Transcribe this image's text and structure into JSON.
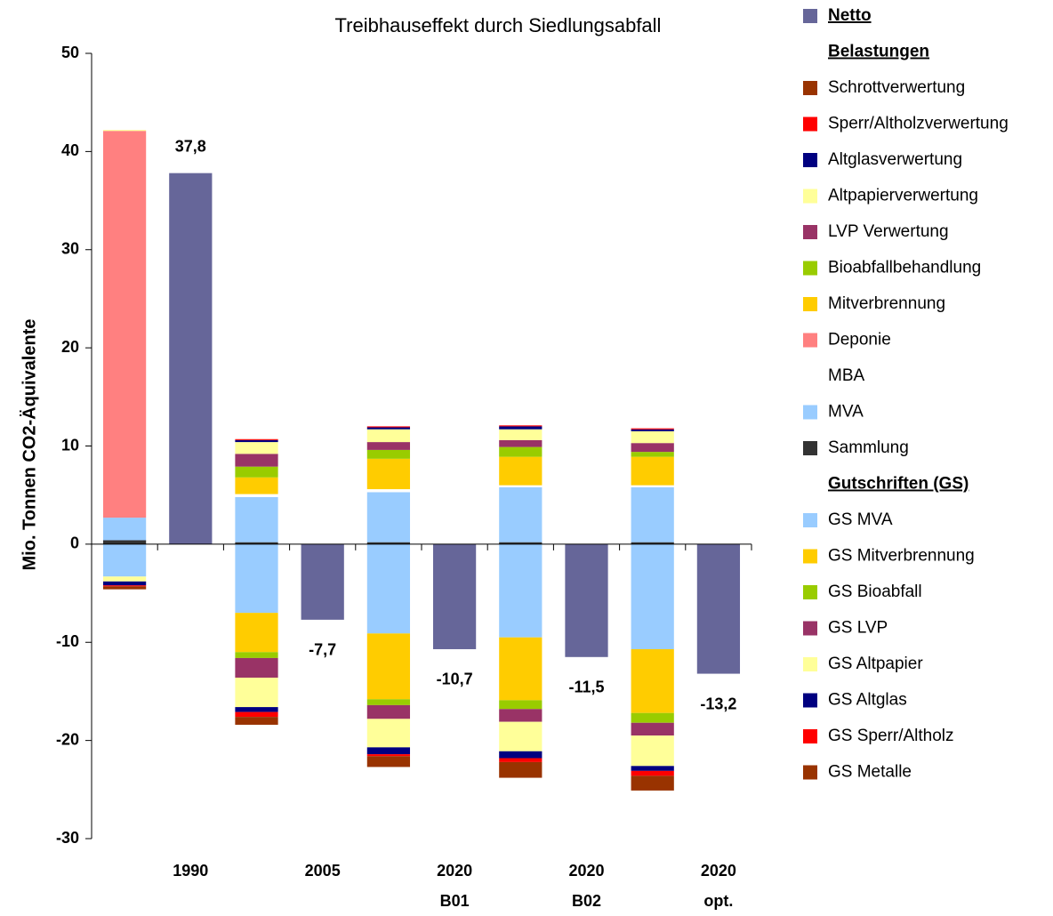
{
  "chart_data": {
    "type": "bar",
    "title": "Treibhauseffekt durch Siedlungsabfall",
    "y_label": "Mio. Tonnen CO2-Äquivalente",
    "categories": [
      null,
      "1990",
      null,
      "2005",
      null,
      "2020 B01",
      null,
      "2020 B02",
      null,
      "2020 opt."
    ],
    "ylim": [
      -30,
      50
    ],
    "yticks": [
      -30,
      -20,
      -10,
      0,
      10,
      20,
      30,
      40,
      50
    ],
    "netto": {
      "name": "Netto",
      "color": "#666699",
      "values": [
        null,
        37.8,
        null,
        -7.7,
        null,
        -10.7,
        null,
        -11.5,
        null,
        -13.2
      ],
      "value_labels": [
        null,
        "37,8",
        null,
        "-7,7",
        null,
        "-10,7",
        null,
        "-11,5",
        null,
        "-13,2"
      ]
    },
    "belastungen": {
      "title": "Belastungen",
      "series": [
        {
          "name": "Schrottverwertung",
          "color": "#993300",
          "values": [
            0,
            null,
            0,
            null,
            0,
            null,
            0,
            null,
            0,
            null
          ]
        },
        {
          "name": "Sperr/Altholzverwertung",
          "color": "#ff0000",
          "values": [
            0,
            null,
            0.1,
            null,
            0.1,
            null,
            0.1,
            null,
            0.1,
            null
          ]
        },
        {
          "name": "Altglasverwertung",
          "color": "#000080",
          "values": [
            0,
            null,
            0.2,
            null,
            0.2,
            null,
            0.3,
            null,
            0.2,
            null
          ]
        },
        {
          "name": "Altpapierverwertung",
          "color": "#ffff99",
          "values": [
            0.1,
            null,
            1.2,
            null,
            1.3,
            null,
            1.1,
            null,
            1.2,
            null
          ]
        },
        {
          "name": "LVP Verwertung",
          "color": "#993366",
          "values": [
            0,
            null,
            1.3,
            null,
            0.8,
            null,
            0.7,
            null,
            0.9,
            null
          ]
        },
        {
          "name": "Bioabfallbehandlung",
          "color": "#99cc00",
          "values": [
            0,
            null,
            1.1,
            null,
            0.9,
            null,
            1.0,
            null,
            0.5,
            null
          ]
        },
        {
          "name": "Mitverbrennung",
          "color": "#ffcc00",
          "values": [
            0,
            null,
            1.7,
            null,
            3.1,
            null,
            2.9,
            null,
            2.9,
            null
          ]
        },
        {
          "name": "Deponie",
          "color": "#ff8080",
          "values": [
            39.4,
            null,
            0,
            null,
            0,
            null,
            0,
            null,
            0,
            null
          ]
        },
        {
          "name": "MBA",
          "color": "#ffffff",
          "values": [
            0,
            null,
            0.3,
            null,
            0.3,
            null,
            0.2,
            null,
            0.2,
            null
          ]
        },
        {
          "name": "MVA",
          "color": "#99ccff",
          "values": [
            2.3,
            null,
            4.6,
            null,
            5.1,
            null,
            5.6,
            null,
            5.6,
            null
          ]
        },
        {
          "name": "Sammlung",
          "color": "#333333",
          "values": [
            0.4,
            null,
            0.2,
            null,
            0.2,
            null,
            0.2,
            null,
            0.2,
            null
          ]
        }
      ]
    },
    "gutschriften": {
      "title": "Gutschriften (GS)",
      "series": [
        {
          "name": "GS MVA",
          "color": "#99ccff",
          "values": [
            -3.3,
            null,
            -7.0,
            null,
            -9.1,
            null,
            -9.5,
            null,
            -10.7,
            null
          ]
        },
        {
          "name": "GS Mitverbrennung",
          "color": "#ffcc00",
          "values": [
            0,
            null,
            -4.0,
            null,
            -6.7,
            null,
            -6.4,
            null,
            -6.5,
            null
          ]
        },
        {
          "name": "GS Bioabfall",
          "color": "#99cc00",
          "values": [
            0,
            null,
            -0.6,
            null,
            -0.6,
            null,
            -0.9,
            null,
            -1.0,
            null
          ]
        },
        {
          "name": "GS LVP",
          "color": "#993366",
          "values": [
            0,
            null,
            -2.0,
            null,
            -1.4,
            null,
            -1.3,
            null,
            -1.3,
            null
          ]
        },
        {
          "name": "GS Altpapier",
          "color": "#ffff99",
          "values": [
            -0.5,
            null,
            -3.0,
            null,
            -2.9,
            null,
            -3.0,
            null,
            -3.1,
            null
          ]
        },
        {
          "name": "GS Altglas",
          "color": "#000080",
          "values": [
            -0.4,
            null,
            -0.5,
            null,
            -0.7,
            null,
            -0.7,
            null,
            -0.5,
            null
          ]
        },
        {
          "name": "GS Sperr/Altholz",
          "color": "#ff0000",
          "values": [
            -0.1,
            null,
            -0.5,
            null,
            -0.2,
            null,
            -0.4,
            null,
            -0.5,
            null
          ]
        },
        {
          "name": "GS Metalle",
          "color": "#993300",
          "values": [
            -0.3,
            null,
            -0.8,
            null,
            -1.1,
            null,
            -1.6,
            null,
            -1.5,
            null
          ]
        }
      ]
    }
  }
}
